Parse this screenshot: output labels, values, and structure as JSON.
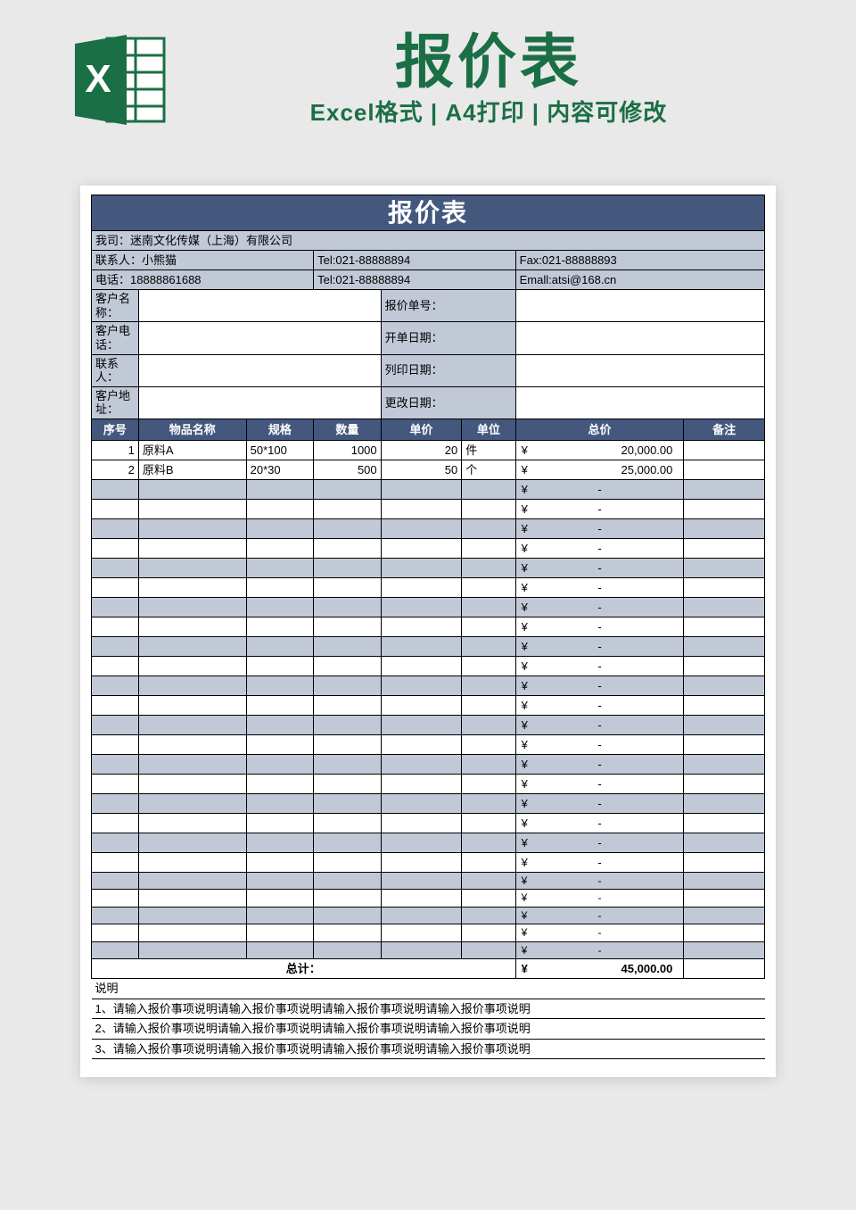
{
  "header": {
    "title_main": "报价表",
    "title_sub": "Excel格式 | A4打印 | 内容可修改"
  },
  "colors": {
    "brand_green": "#1b6f45",
    "banner_bg": "#44587e",
    "cell_alt_bg": "#c1c8d6",
    "page_bg": "#e9e9ea",
    "border": "#000000",
    "text": "#222222"
  },
  "sheet_title": "报价表",
  "company_line": "我司：迷南文化传媒（上海）有限公司",
  "contact_rows": [
    {
      "c1": "联系人：小熊猫",
      "c2": "Tel:021-88888894",
      "c3": "Fax:021-88888893"
    },
    {
      "c1": "电话：18888861688",
      "c2": "Tel:021-88888894",
      "c3": "Emall:atsi@168.cn"
    }
  ],
  "customer_fields": [
    {
      "left_label": "客户名称：",
      "right_label": "报价单号："
    },
    {
      "left_label": "客户电话：",
      "right_label": "开单日期："
    },
    {
      "left_label": "联系人：",
      "right_label": "列印日期："
    },
    {
      "left_label": "客户地址：",
      "right_label": "更改日期："
    }
  ],
  "columns": [
    "序号",
    "物品名称",
    "规格",
    "数量",
    "单价",
    "单位",
    "总价",
    "备注"
  ],
  "col_widths_pct": [
    7,
    16,
    10,
    10,
    12,
    8,
    25,
    12
  ],
  "rows": [
    {
      "seq": "1",
      "name": "原料A",
      "spec": "50*100",
      "qty": "1000",
      "price": "20",
      "unit": "件",
      "total": "20,000.00",
      "note": ""
    },
    {
      "seq": "2",
      "name": "原料B",
      "spec": "20*30",
      "qty": "500",
      "price": "50",
      "unit": "个",
      "total": "25,000.00",
      "note": ""
    }
  ],
  "empty_row_count": 25,
  "currency_symbol": "¥",
  "total_label": "总计：",
  "grand_total": "45,000.00",
  "notes_title": "说明",
  "notes": [
    "1、请输入报价事项说明请输入报价事项说明请输入报价事项说明请输入报价事项说明",
    "2、请输入报价事项说明请输入报价事项说明请输入报价事项说明请输入报价事项说明",
    "3、请输入报价事项说明请输入报价事项说明请输入报价事项说明请输入报价事项说明"
  ]
}
